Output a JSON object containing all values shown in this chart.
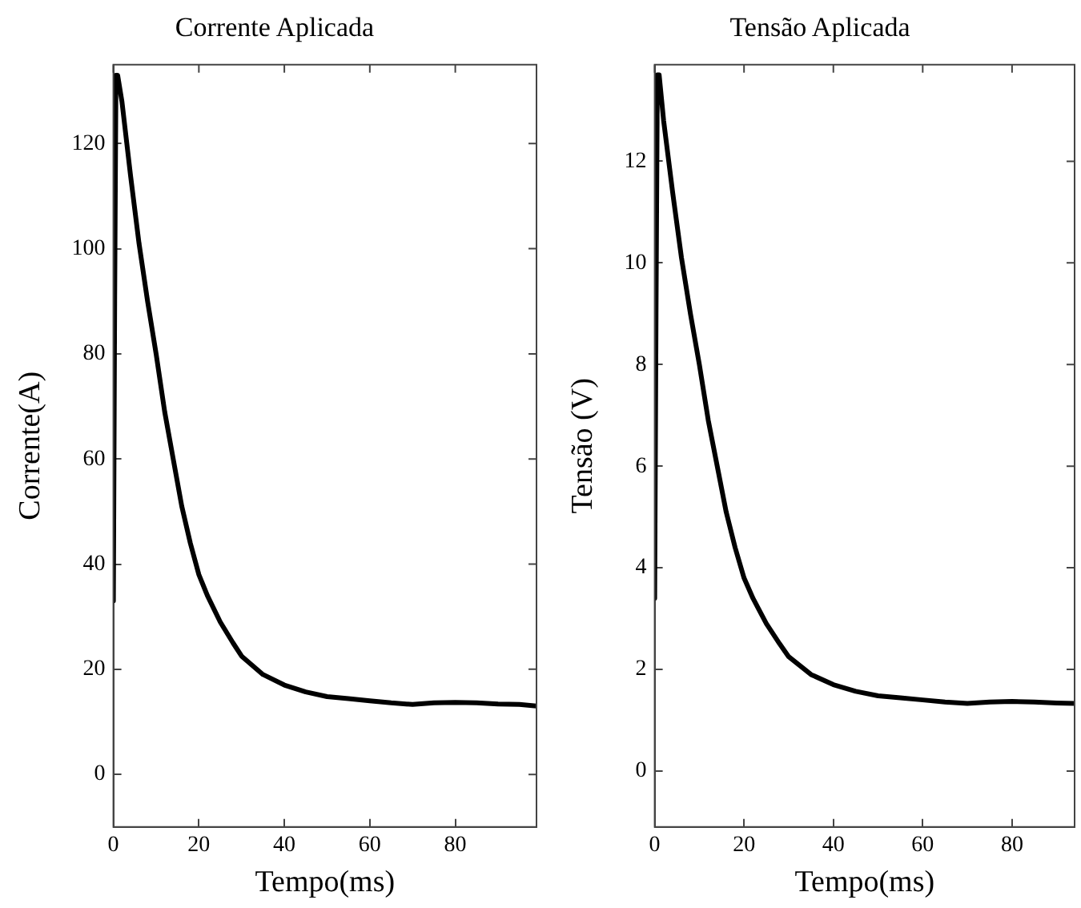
{
  "chart_data": [
    {
      "type": "line",
      "title": "Corrente Aplicada",
      "xlabel": "Tempo(ms)",
      "ylabel": "Corrente(A)",
      "series": [
        {
          "color": "#000000",
          "x": [
            0,
            0.3,
            0.6,
            1,
            2,
            4,
            6,
            8,
            10,
            12,
            14,
            16,
            18,
            20,
            22,
            25,
            28,
            30,
            35,
            40,
            45,
            50,
            55,
            60,
            65,
            70,
            75,
            80,
            85,
            90,
            95,
            99
          ],
          "values": [
            33,
            90,
            133,
            133,
            128,
            114,
            101,
            90,
            80,
            69,
            60,
            51,
            44,
            38,
            34,
            29,
            25,
            22.5,
            19,
            17,
            15.7,
            14.8,
            14.4,
            14,
            13.6,
            13.3,
            13.6,
            13.7,
            13.6,
            13.4,
            13.3,
            13
          ]
        }
      ],
      "xlim": [
        0,
        99
      ],
      "xticks": [
        0,
        20,
        40,
        60,
        80
      ],
      "ylim": [
        -10,
        135
      ],
      "yticks": [
        0,
        20,
        40,
        60,
        80,
        100,
        120
      ],
      "grid": false,
      "legend": false,
      "marker": "none",
      "line_style": "solid"
    },
    {
      "type": "line",
      "title": "Tensão Aplicada",
      "xlabel": "Tempo(ms)",
      "ylabel": "Tensão (V)",
      "series": [
        {
          "color": "#000000",
          "x": [
            0,
            0.3,
            0.6,
            1,
            2,
            4,
            6,
            8,
            10,
            12,
            14,
            16,
            18,
            20,
            22,
            25,
            28,
            30,
            35,
            40,
            45,
            50,
            55,
            60,
            65,
            70,
            75,
            80,
            85,
            90,
            94
          ],
          "values": [
            3.4,
            9,
            13.7,
            13.7,
            12.8,
            11.4,
            10.1,
            9,
            8,
            6.9,
            6,
            5.1,
            4.4,
            3.8,
            3.4,
            2.9,
            2.5,
            2.25,
            1.9,
            1.7,
            1.57,
            1.48,
            1.44,
            1.4,
            1.36,
            1.33,
            1.36,
            1.37,
            1.36,
            1.34,
            1.33
          ]
        }
      ],
      "xlim": [
        0,
        94
      ],
      "xticks": [
        0,
        20,
        40,
        60,
        80
      ],
      "ylim": [
        -1.1,
        13.9
      ],
      "yticks": [
        0,
        2,
        4,
        6,
        8,
        10,
        12
      ],
      "grid": false,
      "legend": false,
      "marker": "none",
      "line_style": "solid"
    }
  ]
}
